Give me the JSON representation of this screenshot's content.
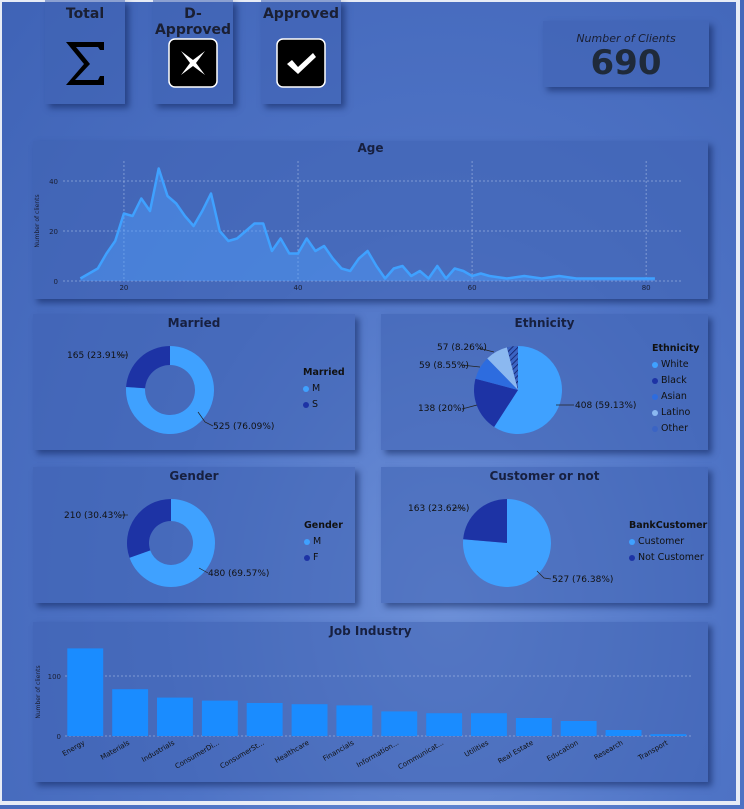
{
  "buttons": [
    {
      "label": "Total",
      "icon": "sigma-icon"
    },
    {
      "label": "D-Approved",
      "icon": "close-icon"
    },
    {
      "label": "Approved",
      "icon": "check-icon"
    }
  ],
  "kpi": {
    "label": "Number of Clients",
    "value": "690"
  },
  "colors": {
    "light": "#3fa1ff",
    "dark": "#1d33a5",
    "mid": "#2d6cdf",
    "bar": "#1a8cff"
  },
  "chart_data": [
    {
      "type": "area",
      "title": "Age",
      "ylabel": "Number of clients",
      "xlabel": "",
      "xlim": [
        13,
        84
      ],
      "ylim": [
        0,
        48
      ],
      "xticks": [
        20,
        40,
        60,
        80
      ],
      "yticks": [
        0,
        20,
        40
      ],
      "x": [
        15,
        17,
        18,
        19,
        20,
        21,
        22,
        23,
        24,
        25,
        26,
        27,
        28,
        29,
        30,
        31,
        32,
        33,
        34,
        35,
        36,
        37,
        38,
        39,
        40,
        41,
        42,
        43,
        44,
        45,
        46,
        47,
        48,
        49,
        50,
        51,
        52,
        53,
        54,
        55,
        56,
        57,
        58,
        59,
        60,
        61,
        62,
        64,
        66,
        68,
        70,
        72,
        75,
        78,
        81
      ],
      "y": [
        1,
        5,
        11,
        16,
        27,
        26,
        33,
        28,
        45,
        34,
        31,
        26,
        22,
        28,
        35,
        20,
        16,
        17,
        20,
        23,
        23,
        12,
        17,
        11,
        11,
        17,
        12,
        14,
        9,
        5,
        4,
        9,
        12,
        6,
        1,
        5,
        6,
        2,
        4,
        1,
        6,
        1,
        5,
        4,
        2,
        3,
        2,
        1,
        2,
        1,
        2,
        1,
        1,
        1,
        1
      ]
    },
    {
      "type": "pie",
      "title": "Married",
      "legend_title": "Married",
      "slices": [
        {
          "name": "M",
          "value": 525,
          "label": "525 (76.09%)"
        },
        {
          "name": "S",
          "value": 165,
          "label": "165 (23.91%)"
        }
      ]
    },
    {
      "type": "pie",
      "title": "Ethnicity",
      "legend_title": "Ethnicity",
      "slices": [
        {
          "name": "White",
          "value": 408,
          "label": "408 (59.13%)"
        },
        {
          "name": "Black",
          "value": 138,
          "label": "138 (20%)"
        },
        {
          "name": "Asian",
          "value": 59,
          "label": "59 (8.55%)"
        },
        {
          "name": "Latino",
          "value": 57,
          "label": "57 (8.26%)"
        },
        {
          "name": "Other",
          "value": 28,
          "label": ""
        }
      ]
    },
    {
      "type": "pie",
      "title": "Gender",
      "legend_title": "Gender",
      "slices": [
        {
          "name": "M",
          "value": 480,
          "label": "480 (69.57%)"
        },
        {
          "name": "F",
          "value": 210,
          "label": "210 (30.43%)"
        }
      ]
    },
    {
      "type": "pie",
      "title": "Customer or not",
      "legend_title": "BankCustomer",
      "slices": [
        {
          "name": "Customer",
          "value": 527,
          "label": "527 (76.38%)"
        },
        {
          "name": "Not Customer",
          "value": 163,
          "label": "163 (23.62%)"
        }
      ]
    },
    {
      "type": "bar",
      "title": "Job Industry",
      "ylabel": "Number of clients",
      "ylim": [
        0,
        160
      ],
      "yticks": [
        0,
        100
      ],
      "categories": [
        "Energy",
        "Materials",
        "Industrials",
        "ConsumerDi...",
        "ConsumerSt...",
        "Healthcare",
        "Financials",
        "Information...",
        "Communicat...",
        "Utilities",
        "Real Estate",
        "Education",
        "Research",
        "Transport"
      ],
      "values": [
        146,
        78,
        64,
        59,
        55,
        53,
        51,
        41,
        38,
        38,
        30,
        25,
        10,
        3
      ]
    }
  ]
}
